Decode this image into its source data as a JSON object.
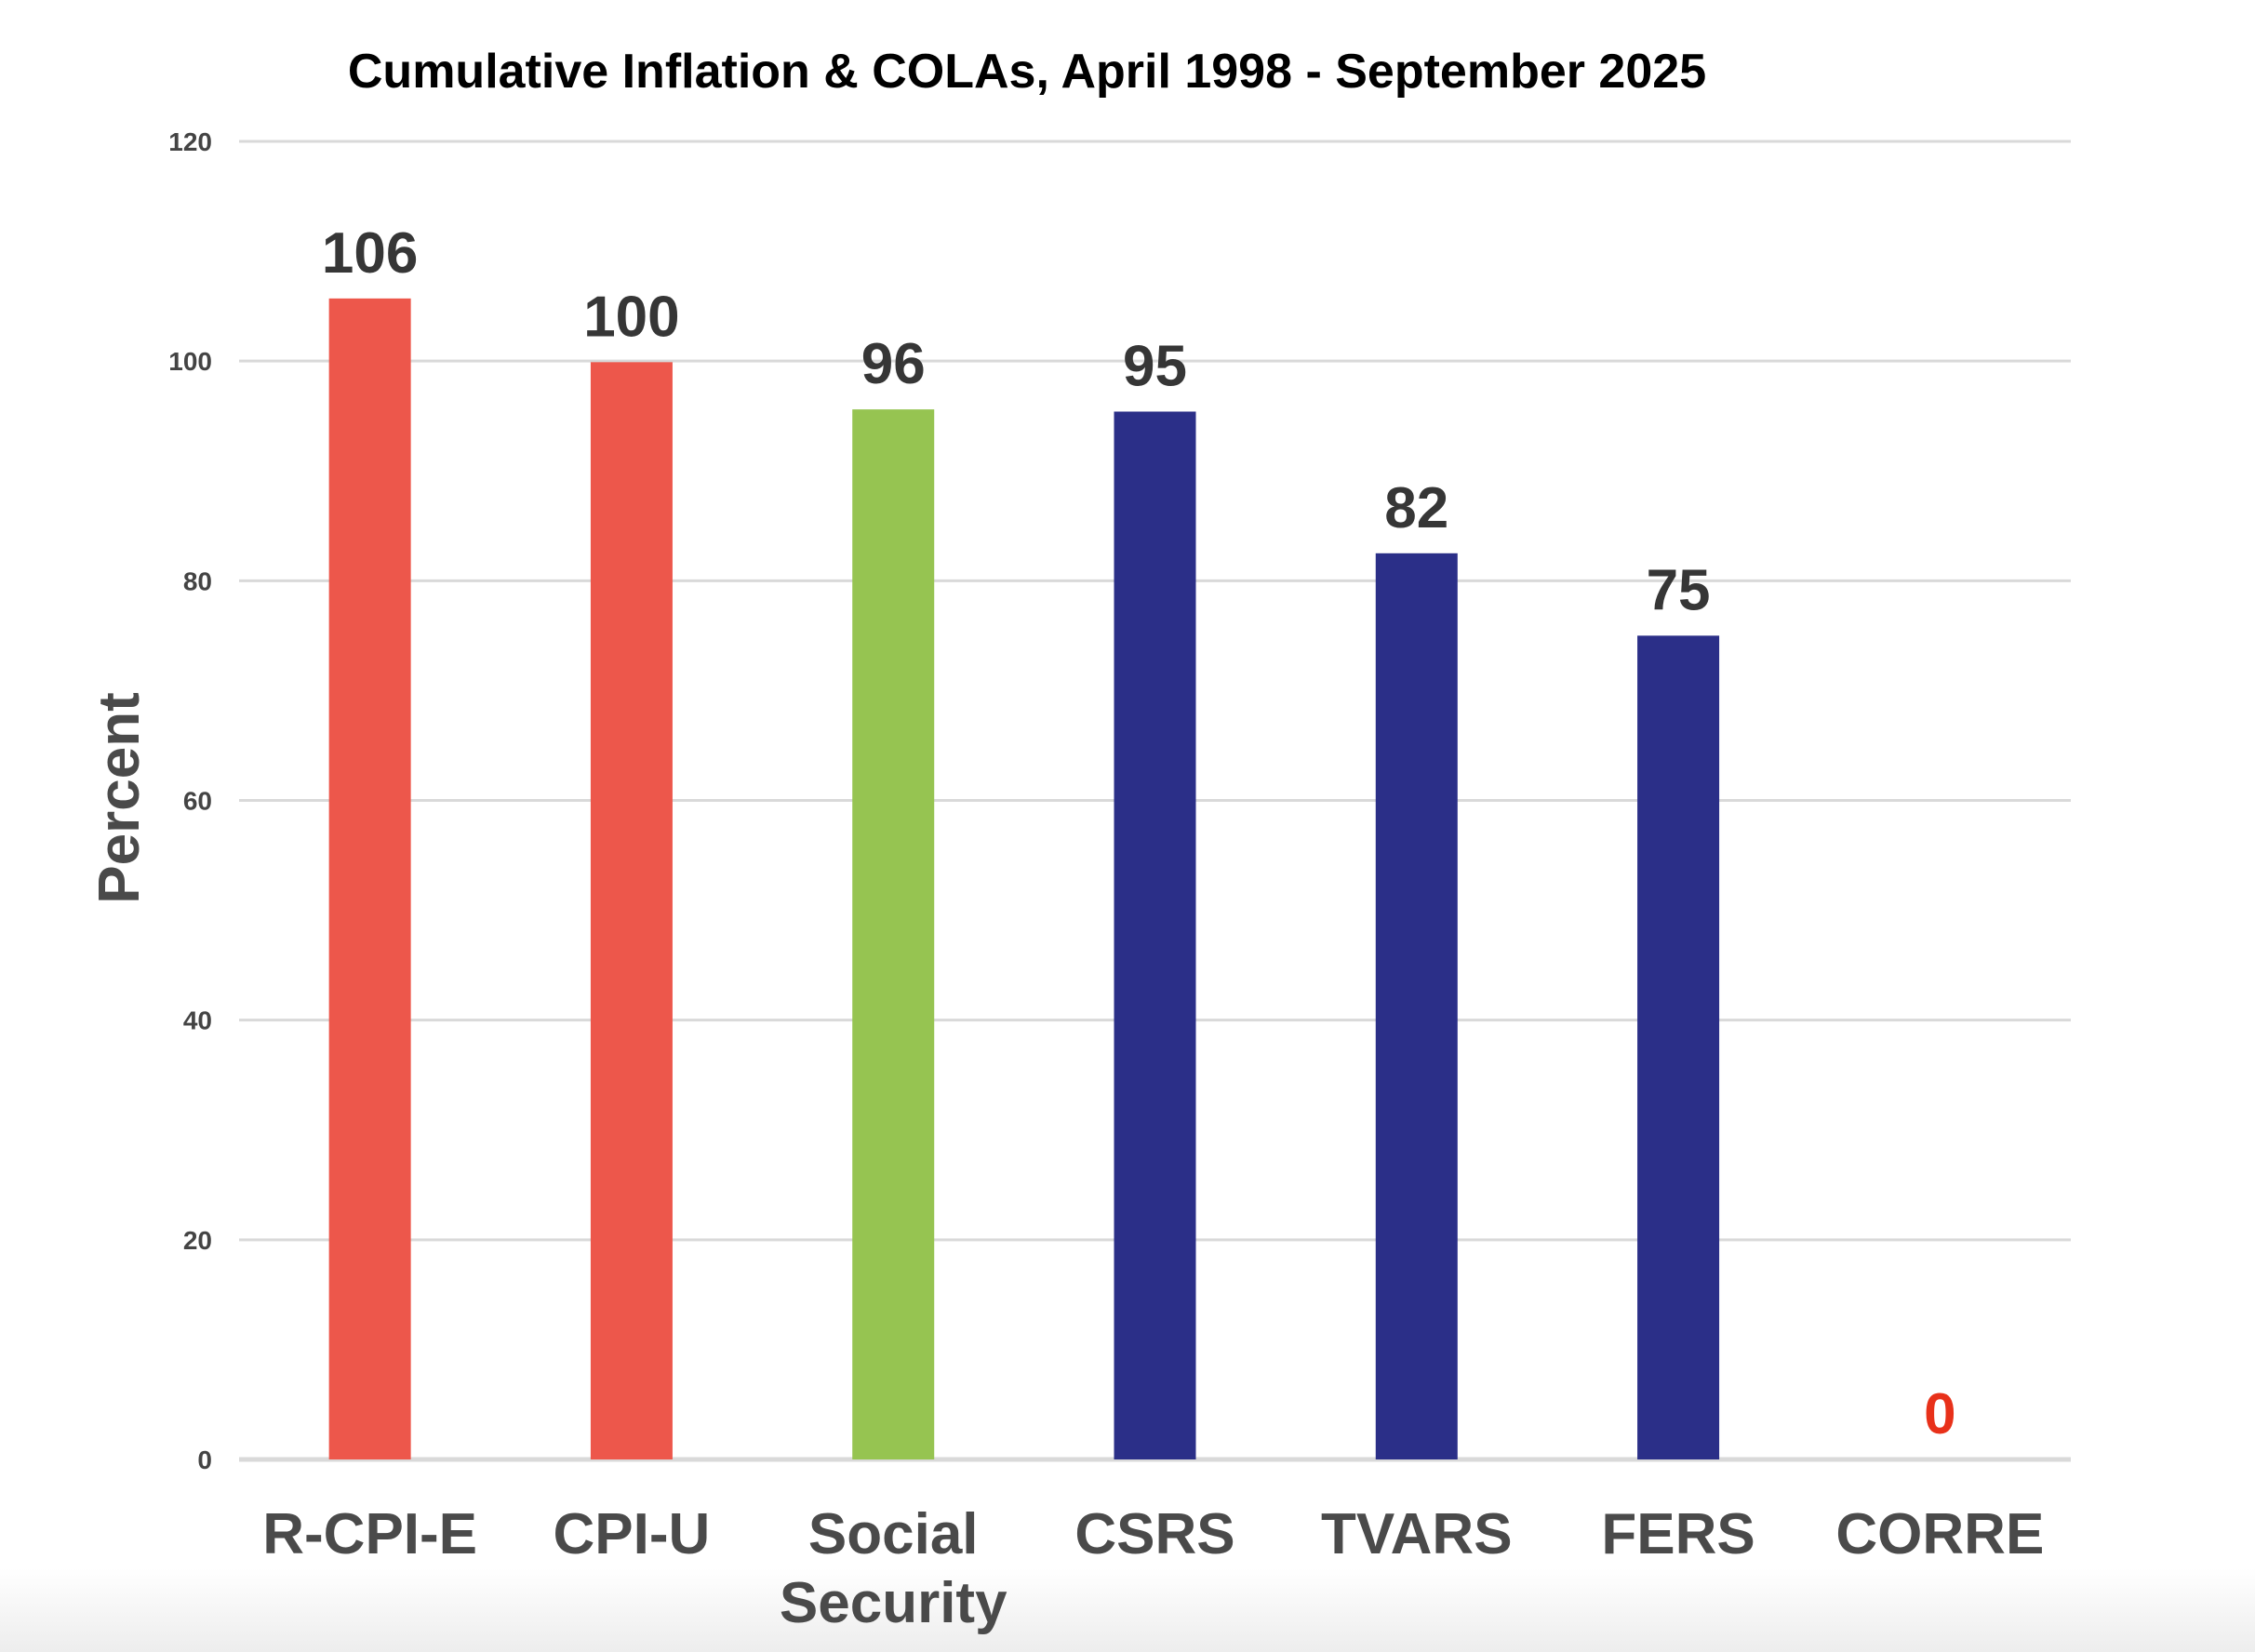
{
  "chart_data": {
    "type": "bar",
    "title": "Cumulative Inflation & COLAs, April 1998 - September 2025",
    "xlabel": "",
    "ylabel": "Percent",
    "ylim": [
      0,
      120
    ],
    "yticks": [
      0,
      20,
      40,
      60,
      80,
      100,
      120
    ],
    "grid": true,
    "legend": "none",
    "categories": [
      [
        "R-CPI-E"
      ],
      [
        "CPI-U"
      ],
      [
        "Social",
        "Security"
      ],
      [
        "CSRS"
      ],
      [
        "TVARS"
      ],
      [
        "FERS"
      ],
      [
        "CORRE"
      ]
    ],
    "values": [
      105.7,
      99.9,
      95.6,
      95.4,
      82.5,
      75.0,
      0
    ],
    "data_labels": [
      "106",
      "100",
      "96",
      "95",
      "82",
      "75",
      "0"
    ],
    "bar_colors": [
      "#ED574B",
      "#ED574B",
      "#96C451",
      "#2B2F88",
      "#2B2F88",
      "#2B2F88",
      "#2B2F88"
    ],
    "label_colors": [
      "#363636",
      "#363636",
      "#363636",
      "#363636",
      "#363636",
      "#363636",
      "#E8311A"
    ],
    "gridline_color": "#D9D9D9"
  }
}
